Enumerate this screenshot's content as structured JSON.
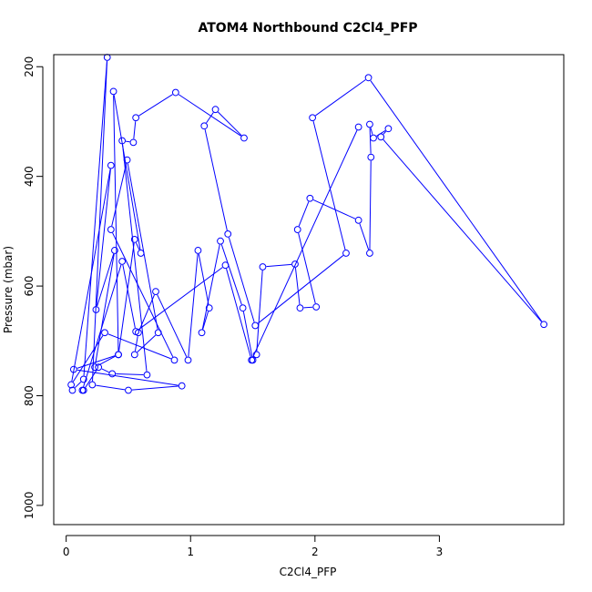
{
  "chart_data": {
    "type": "line",
    "title": "ATOM4 Northbound C2Cl4_PFP",
    "xlabel": "C2Cl4_PFP",
    "ylabel": "Pressure (mbar)",
    "xlim": [
      -0.1,
      4.0
    ],
    "ylim": [
      1035,
      178
    ],
    "y_reversed": true,
    "xticks": [
      0,
      1,
      2,
      3
    ],
    "xtick_labels": [
      "0",
      "1",
      "2",
      "3"
    ],
    "yticks": [
      200,
      400,
      600,
      800,
      1000
    ],
    "ytick_labels": [
      "200",
      "400",
      "600",
      "800",
      "1000"
    ],
    "series": [
      {
        "color": "#0000ff",
        "style": "points-and-lines",
        "points": [
          [
            0.05,
            790
          ],
          [
            0.14,
            770
          ],
          [
            0.33,
            183
          ],
          [
            0.21,
            780
          ],
          [
            0.5,
            790
          ],
          [
            0.93,
            782
          ],
          [
            0.06,
            752
          ],
          [
            0.42,
            725
          ],
          [
            0.55,
            515
          ],
          [
            0.6,
            540
          ],
          [
            0.38,
            245
          ],
          [
            0.42,
            725
          ],
          [
            0.23,
            748
          ],
          [
            0.39,
            535
          ],
          [
            0.24,
            643
          ],
          [
            0.36,
            380
          ],
          [
            0.04,
            780
          ],
          [
            0.31,
            685
          ],
          [
            0.87,
            735
          ],
          [
            0.36,
            497
          ],
          [
            0.49,
            370
          ],
          [
            0.74,
            685
          ],
          [
            0.55,
            725
          ],
          [
            0.58,
            685
          ],
          [
            0.72,
            610
          ],
          [
            0.98,
            735
          ],
          [
            1.06,
            535
          ],
          [
            1.15,
            640
          ],
          [
            1.09,
            685
          ],
          [
            1.24,
            518
          ],
          [
            1.42,
            640
          ],
          [
            1.5,
            735
          ],
          [
            1.53,
            725
          ],
          [
            1.58,
            565
          ],
          [
            1.84,
            560
          ],
          [
            1.88,
            640
          ],
          [
            2.01,
            638
          ],
          [
            1.86,
            497
          ],
          [
            1.96,
            440
          ],
          [
            2.35,
            480
          ],
          [
            2.44,
            540
          ],
          [
            2.45,
            365
          ],
          [
            2.44,
            305
          ],
          [
            2.47,
            330
          ],
          [
            2.59,
            313
          ],
          [
            2.53,
            328
          ],
          [
            3.84,
            670
          ],
          [
            2.43,
            220
          ],
          [
            1.98,
            293
          ],
          [
            2.25,
            540
          ],
          [
            1.52,
            672
          ],
          [
            1.3,
            505
          ],
          [
            1.11,
            308
          ],
          [
            1.2,
            278
          ],
          [
            1.43,
            330
          ],
          [
            0.88,
            247
          ],
          [
            0.56,
            293
          ],
          [
            0.54,
            338
          ],
          [
            0.45,
            335
          ],
          [
            0.65,
            762
          ],
          [
            0.37,
            760
          ],
          [
            0.26,
            748
          ],
          [
            0.14,
            790
          ],
          [
            0.13,
            790
          ],
          [
            0.45,
            555
          ],
          [
            0.56,
            683
          ],
          [
            1.28,
            562
          ],
          [
            1.49,
            735
          ],
          [
            2.35,
            310
          ]
        ]
      }
    ]
  }
}
